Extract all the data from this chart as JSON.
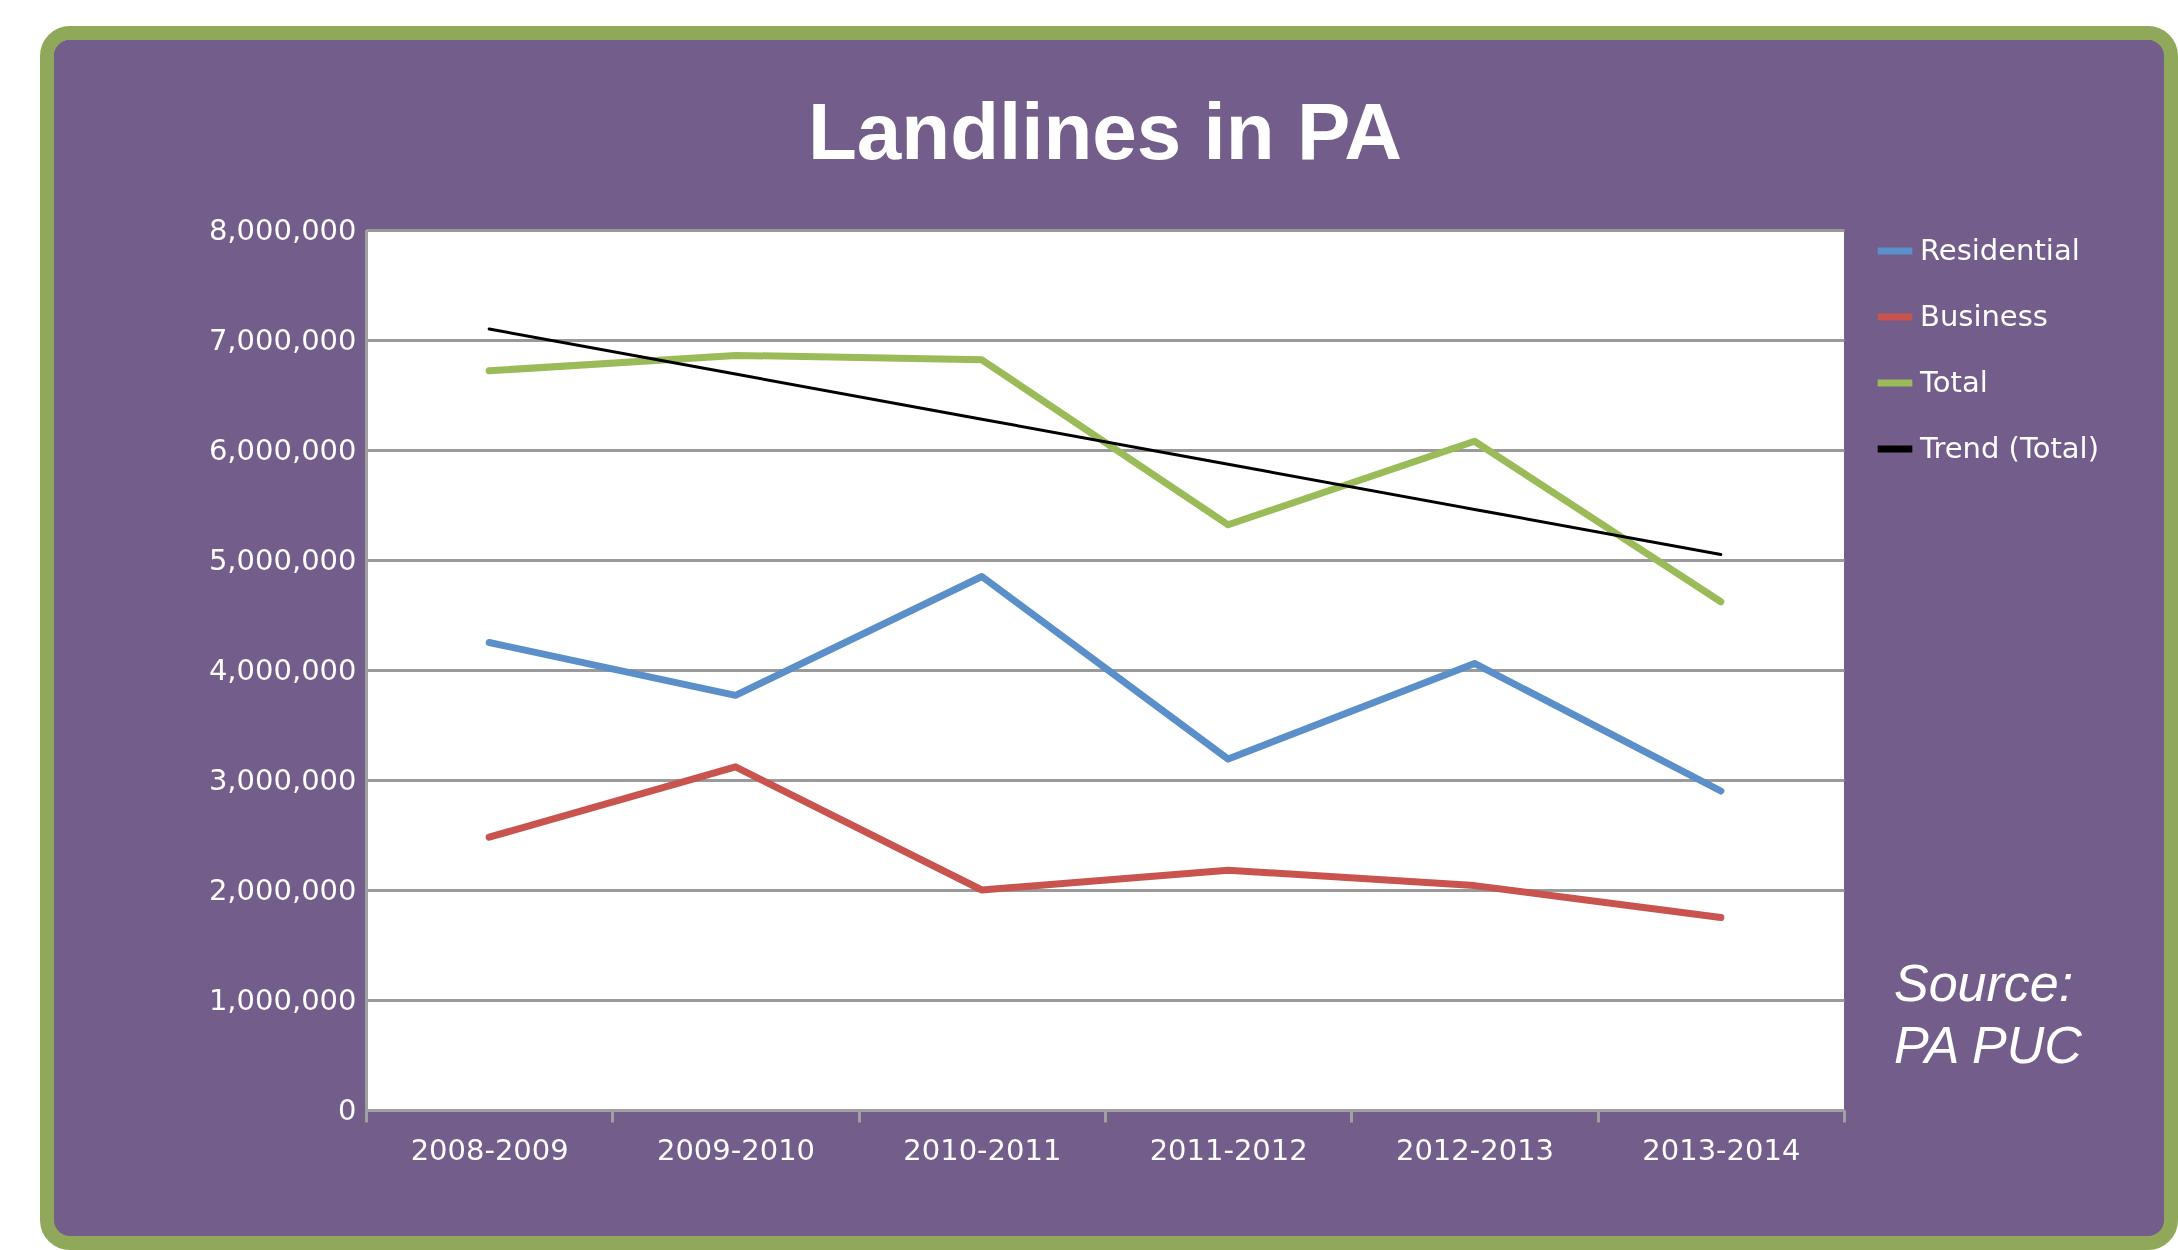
{
  "chart_data": {
    "type": "line",
    "title": "Landlines in PA",
    "categories": [
      "2008-2009",
      "2009-2010",
      "2010-2011",
      "2011-2012",
      "2012-2013",
      "2013-2014"
    ],
    "series": [
      {
        "name": "Residential",
        "color": "#5b8fc9",
        "values": [
          4250000,
          3770000,
          4850000,
          3190000,
          4060000,
          2900000
        ]
      },
      {
        "name": "Business",
        "color": "#c9534f",
        "values": [
          2480000,
          3120000,
          2000000,
          2180000,
          2040000,
          1750000
        ]
      },
      {
        "name": "Total",
        "color": "#9bbb59",
        "values": [
          6720000,
          6860000,
          6820000,
          5320000,
          6080000,
          4620000
        ]
      },
      {
        "name": "Trend (Total)",
        "color": "#000000",
        "type": "line",
        "x": [
          "2008-2009",
          "2009-2010",
          "2010-2011",
          "2011-2012",
          "2012-2013",
          "2013-2014"
        ],
        "values": [
          7100000,
          6690000,
          6280000,
          5870000,
          5460000,
          5050000
        ]
      }
    ],
    "ylim": [
      0,
      8000000
    ],
    "yticks": [
      0,
      {
        "value": 1000000,
        "label": "1,000,000"
      },
      {
        "value": 2000000,
        "label": "2,000,000"
      },
      {
        "value": 3000000,
        "label": "3,000,000"
      },
      {
        "value": 4000000,
        "label": "4,000,000"
      },
      {
        "value": 5000000,
        "label": "5,000,000"
      },
      {
        "value": 6000000,
        "label": "6,000,000"
      },
      {
        "value": 7000000,
        "label": "7,000,000"
      },
      {
        "value": 8000000,
        "label": "8,000,000"
      }
    ],
    "grid": "y",
    "legend": "right",
    "annotations": [
      "Source: PA PUC"
    ]
  }
}
